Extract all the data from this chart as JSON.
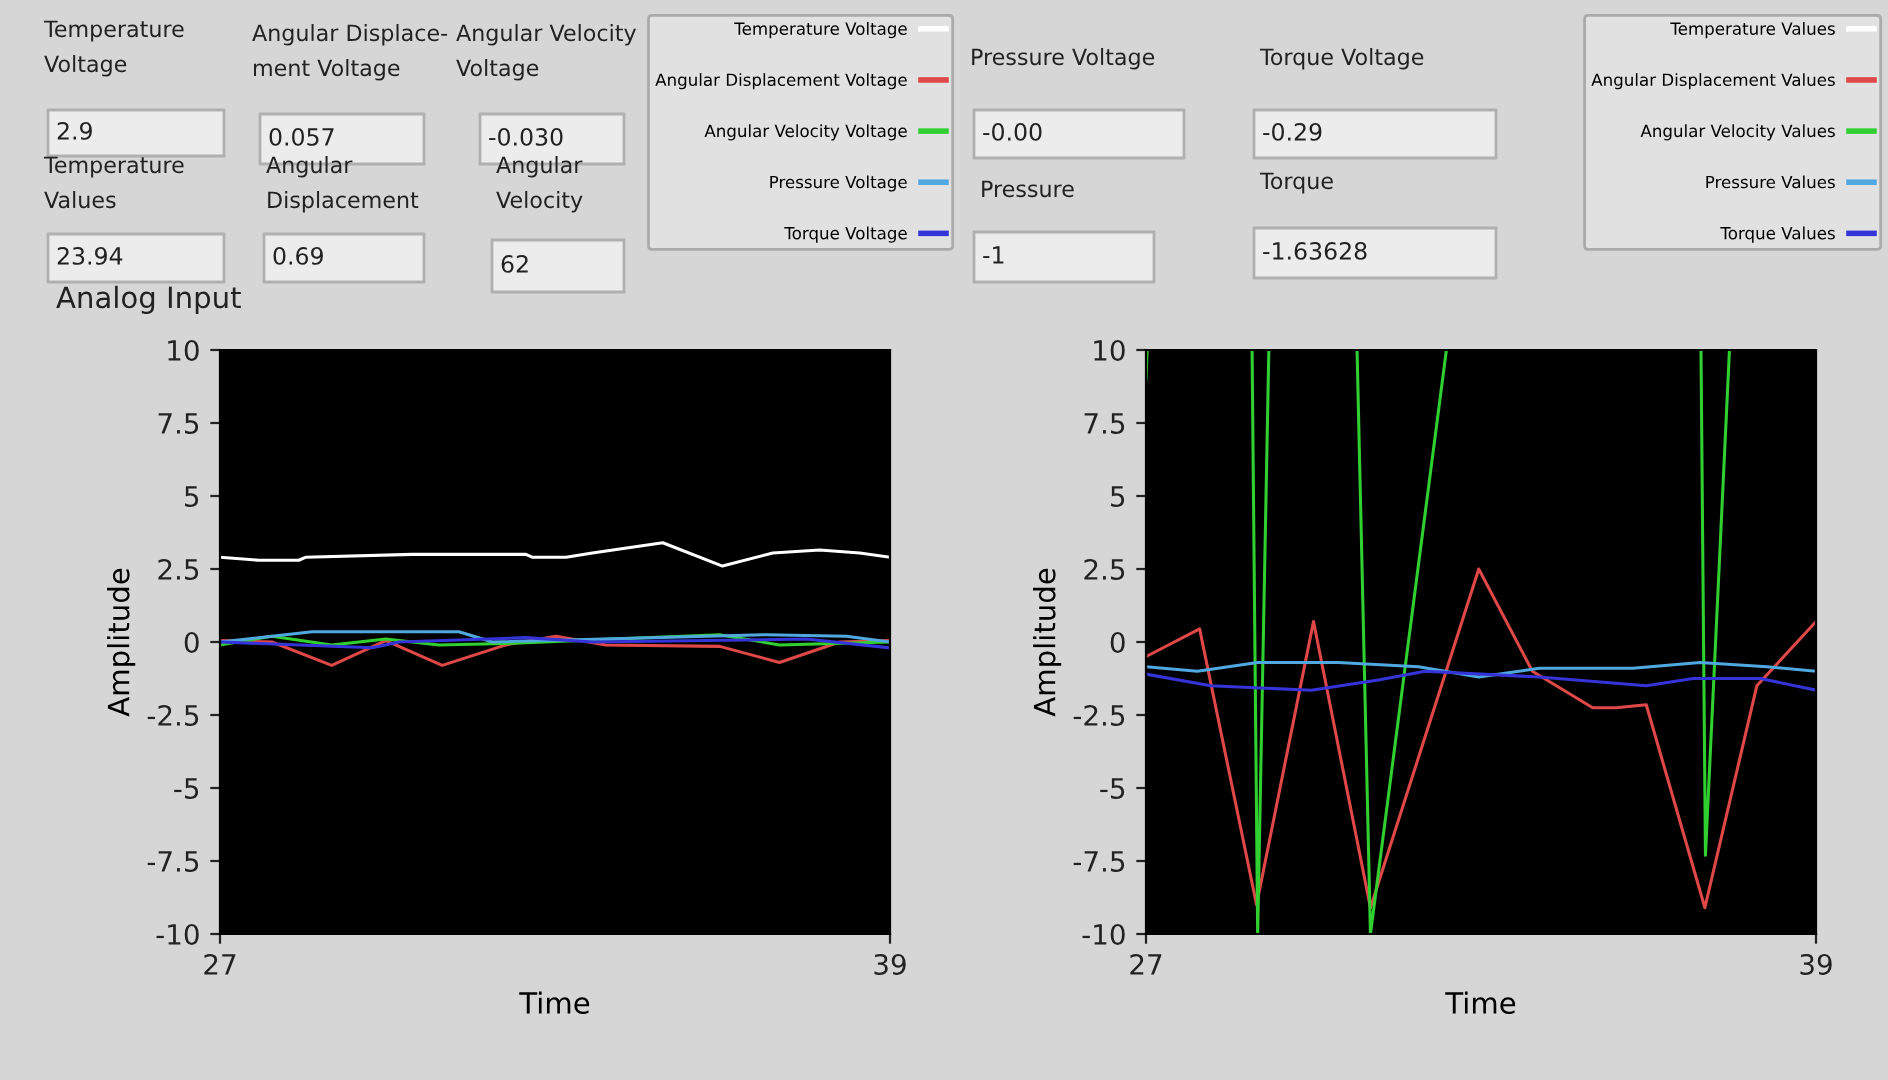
{
  "chart_data": [
    {
      "type": "other",
      "annotations": [
        "Temperature\nVoltage",
        "2.9",
        "Angular Displace-\nment Voltage",
        "0.057",
        "Angular Velocity\nVoltage",
        "-0.030",
        "Temperature\nValues",
        "23.94",
        "Angular\nDisplacement",
        "0.69",
        "Angular\nVelocity",
        "62",
        "Pressure Voltage",
        "-0.00",
        "Torque Voltage",
        "-0.29",
        "Pressure",
        "-1",
        "Torque",
        "-1.63628"
      ]
    },
    {
      "type": "line",
      "title": "Analog Input",
      "xlabel": "Time",
      "ylabel": "Amplitude",
      "xlim": [
        27,
        39
      ],
      "xticks": [
        27,
        39
      ],
      "ylim": [
        -10,
        10
      ],
      "yticks": [
        -10,
        -7.5,
        -5,
        -2.5,
        0,
        2.5,
        5,
        7.5,
        10
      ],
      "grid": false,
      "legend": "top right",
      "series": [
        {
          "name": "Temperature Voltage",
          "color": "#ffffff",
          "x": [
            27,
            27.69,
            28.41,
            28.53,
            30.44,
            32.48,
            32.6,
            33.2,
            33.67,
            34.93,
            36.0,
            36.9,
            37.74,
            38.46,
            39
          ],
          "values": [
            2.9,
            2.8,
            2.8,
            2.9,
            3.0,
            3.0,
            2.9,
            2.9,
            3.05,
            3.4,
            2.6,
            3.05,
            3.15,
            3.05,
            2.9
          ]
        },
        {
          "name": "Angular Displacement Voltage",
          "color": "#e04848",
          "x": [
            27,
            27.93,
            29.0,
            29.97,
            30.98,
            32.12,
            33.02,
            33.91,
            35.95,
            37.02,
            38.1,
            39
          ],
          "values": [
            0.05,
            0,
            -0.8,
            0.05,
            -0.8,
            -0.1,
            0.2,
            -0.1,
            -0.15,
            -0.7,
            0,
            0.05
          ]
        },
        {
          "name": "Angular Velocity Voltage",
          "color": "#30d030",
          "x": [
            27,
            27.93,
            29.0,
            29.97,
            30.92,
            32.12,
            35.95,
            37.02,
            39
          ],
          "values": [
            -0.1,
            0.2,
            -0.1,
            0.1,
            -0.1,
            -0.05,
            0.25,
            -0.1,
            0
          ]
        },
        {
          "name": "Pressure Voltage",
          "color": "#50a8e0",
          "x": [
            27,
            28.65,
            31.28,
            31.88,
            36.78,
            38.22,
            39
          ],
          "values": [
            0,
            0.35,
            0.35,
            0,
            0.25,
            0.2,
            0
          ]
        },
        {
          "name": "Torque Voltage",
          "color": "#3434d8",
          "x": [
            27,
            29.73,
            30.21,
            32.48,
            33.67,
            37.5,
            39
          ],
          "values": [
            0,
            -0.2,
            0,
            0.15,
            0,
            0.1,
            -0.2
          ]
        }
      ]
    },
    {
      "type": "line",
      "xlabel": "Time",
      "ylabel": "Amplitude",
      "xlim": [
        27,
        39
      ],
      "xticks": [
        27,
        39
      ],
      "ylim": [
        -10,
        10
      ],
      "yticks": [
        -10,
        -7.5,
        -5,
        -2.5,
        0,
        2.5,
        5,
        7.5,
        10
      ],
      "grid": false,
      "legend": "top right",
      "series": [
        {
          "name": "Temperature Values",
          "color": "#ffffff"
        },
        {
          "name": "Angular Displacement Values",
          "color": "#e04848",
          "x": [
            27,
            27.96,
            28.98,
            30.0,
            31.02,
            32.96,
            33.92,
            35.0,
            35.42,
            35.96,
            37.01,
            37.94,
            39
          ],
          "values": [
            -0.5,
            0.45,
            -9.0,
            0.7,
            -9.1,
            2.5,
            -1.0,
            -2.25,
            -2.25,
            -2.15,
            -9.1,
            -1.5,
            0.7
          ]
        },
        {
          "name": "Angular Velocity Values",
          "color": "#30d030",
          "x": [
            27,
            27.02,
            27.5,
            28.9,
            29.0,
            29.2,
            30.0,
            30.78,
            31.02,
            32.38,
            34.0,
            36.94,
            37.02,
            37.45
          ],
          "values": [
            9,
            10,
            null,
            10,
            -10,
            10,
            null,
            10,
            -10,
            10,
            null,
            10,
            -7.3,
            10
          ]
        },
        {
          "name": "Pressure Values",
          "color": "#50a8e0",
          "x": [
            27,
            27.92,
            29.0,
            30.44,
            31.88,
            32.96,
            34.04,
            35.72,
            36.92,
            38.12,
            39
          ],
          "values": [
            -0.85,
            -1.0,
            -0.7,
            -0.7,
            -0.85,
            -1.2,
            -0.9,
            -0.9,
            -0.7,
            -0.85,
            -1.0
          ]
        },
        {
          "name": "Torque Values",
          "color": "#3434d8",
          "x": [
            27,
            28.16,
            29.96,
            31.16,
            32.0,
            34.04,
            35.96,
            36.8,
            38.0,
            39
          ],
          "values": [
            -1.1,
            -1.5,
            -1.65,
            -1.3,
            -1.0,
            -1.2,
            -1.5,
            -1.25,
            -1.25,
            -1.65
          ]
        }
      ]
    }
  ]
}
